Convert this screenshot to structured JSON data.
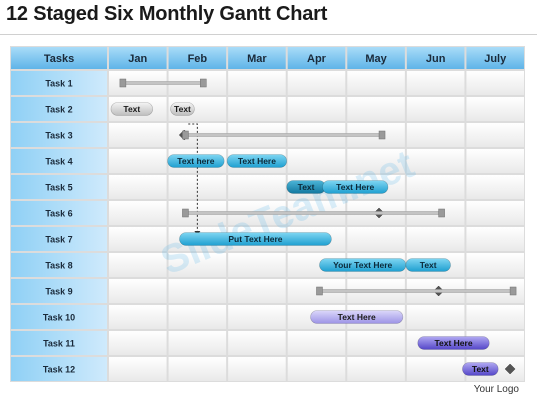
{
  "title": "12 Staged Six Monthly Gantt Chart",
  "logo_text": "Your Logo",
  "watermark": "SlideTeam.net",
  "header_label": "Tasks",
  "months": [
    "Jan",
    "Feb",
    "Mar",
    "Apr",
    "May",
    "Jun",
    "July"
  ],
  "tasks": [
    "Task 1",
    "Task 2",
    "Task 3",
    "Task 4",
    "Task 5",
    "Task 6",
    "Task 7",
    "Task 8",
    "Task 9",
    "Task 10",
    "Task 11",
    "Task 12"
  ],
  "colors": {
    "header_blue": "#7cc3ee",
    "header_light": "#d8eefb",
    "pill_cyan": "#3ab7e0",
    "pill_teal": "#1f9cc9",
    "pill_purple_light": "#b9b3ee",
    "pill_purple": "#6f62d6",
    "pill_gray": "#d9d9d9",
    "track_gray": "#b0b0b0",
    "diamond": "#555555"
  },
  "chart_data": {
    "type": "gantt",
    "x_months": [
      "Jan",
      "Feb",
      "Mar",
      "Apr",
      "May",
      "Jun",
      "July"
    ],
    "rows": [
      {
        "task": "Task 1",
        "items": [
          {
            "kind": "line",
            "start": 0.25,
            "end": 1.6
          }
        ]
      },
      {
        "task": "Task 2",
        "items": [
          {
            "kind": "pill",
            "start": 0.05,
            "end": 0.75,
            "label": "Text",
            "style": "gray"
          },
          {
            "kind": "pill",
            "start": 1.05,
            "end": 1.45,
            "label": "Text",
            "style": "gray"
          }
        ]
      },
      {
        "task": "Task 3",
        "items": [
          {
            "kind": "diamond",
            "at": 1.28
          },
          {
            "kind": "line",
            "start": 1.3,
            "end": 4.6
          }
        ]
      },
      {
        "task": "Task 4",
        "items": [
          {
            "kind": "pill",
            "start": 1.0,
            "end": 1.95,
            "label": "Text here",
            "style": "cyan"
          },
          {
            "kind": "pill",
            "start": 2.0,
            "end": 3.0,
            "label": "Text Here",
            "style": "cyan"
          }
        ]
      },
      {
        "task": "Task 5",
        "items": [
          {
            "kind": "pill",
            "start": 3.0,
            "end": 3.65,
            "label": "Text",
            "style": "teal"
          },
          {
            "kind": "pill",
            "start": 3.6,
            "end": 4.7,
            "label": "Text Here",
            "style": "cyan"
          }
        ]
      },
      {
        "task": "Task 6",
        "items": [
          {
            "kind": "diamond",
            "at": 4.55
          },
          {
            "kind": "line",
            "start": 1.3,
            "end": 5.6
          }
        ]
      },
      {
        "task": "Task 7",
        "items": [
          {
            "kind": "pill",
            "start": 1.2,
            "end": 3.75,
            "label": "Put Text Here",
            "style": "cyan"
          }
        ]
      },
      {
        "task": "Task 8",
        "items": [
          {
            "kind": "pill",
            "start": 3.55,
            "end": 5.0,
            "label": "Your Text Here",
            "style": "cyan"
          },
          {
            "kind": "pill",
            "start": 5.0,
            "end": 5.75,
            "label": "Text",
            "style": "cyan"
          }
        ]
      },
      {
        "task": "Task 9",
        "items": [
          {
            "kind": "diamond",
            "at": 5.55
          },
          {
            "kind": "line",
            "start": 3.55,
            "end": 6.8
          }
        ]
      },
      {
        "task": "Task 10",
        "items": [
          {
            "kind": "pill",
            "start": 3.4,
            "end": 4.95,
            "label": "Text Here",
            "style": "purple_light"
          }
        ]
      },
      {
        "task": "Task 11",
        "items": [
          {
            "kind": "pill",
            "start": 5.2,
            "end": 6.4,
            "label": "Text Here",
            "style": "purple"
          }
        ]
      },
      {
        "task": "Task 12",
        "items": [
          {
            "kind": "pill",
            "start": 5.95,
            "end": 6.55,
            "label": "Text",
            "style": "purple"
          },
          {
            "kind": "diamond",
            "at": 6.75
          }
        ]
      }
    ]
  }
}
